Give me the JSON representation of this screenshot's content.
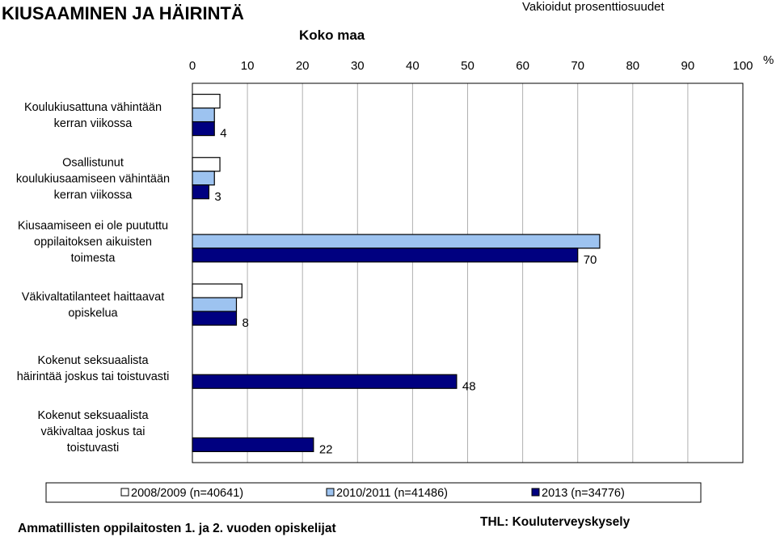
{
  "header": {
    "title": "KIUSAAMINEN JA HÄIRINTÄ",
    "subtitle": "Vakioidut prosenttiosuudet"
  },
  "chart_data": {
    "type": "bar",
    "orientation": "horizontal",
    "title": "Koko maa",
    "unit_label": "%",
    "xlim": [
      0,
      100
    ],
    "x_ticks": [
      "0",
      "10",
      "20",
      "30",
      "40",
      "50",
      "60",
      "70",
      "80",
      "90",
      "100"
    ],
    "grid": true,
    "legend_position": "bottom",
    "categories": [
      [
        "Koulukiusattuna vähintään",
        "kerran viikossa"
      ],
      [
        "Osallistunut",
        "koulukiusaamiseen vähintään",
        "kerran viikossa"
      ],
      [
        "Kiusaamiseen ei ole puututtu",
        "oppilaitoksen aikuisten",
        "toimesta"
      ],
      [
        "Väkivaltatilanteet haittaavat",
        "opiskelua"
      ],
      [
        "Kokenut seksuaalista",
        "häirintää joskus tai toistuvasti"
      ],
      [
        "Kokenut seksuaalista",
        "väkivaltaa joskus tai",
        "toistuvasti"
      ]
    ],
    "series": [
      {
        "name": "2008/2009 (n=40641)",
        "color": "#ffffff",
        "values": [
          5,
          5,
          null,
          9,
          null,
          null
        ]
      },
      {
        "name": "2010/2011 (n=41486)",
        "color": "#9dc3f0",
        "values": [
          4,
          4,
          74,
          8,
          null,
          null
        ]
      },
      {
        "name": "2013 (n=34776)",
        "color": "#000080",
        "values": [
          4,
          3,
          70,
          8,
          48,
          22
        ]
      }
    ],
    "data_labels": [
      "4",
      "3",
      "70",
      "8",
      "48",
      "22"
    ]
  },
  "footer": {
    "left": "Ammatillisten oppilaitosten 1. ja 2. vuoden opiskelijat",
    "right": "THL: Kouluterveyskysely"
  }
}
